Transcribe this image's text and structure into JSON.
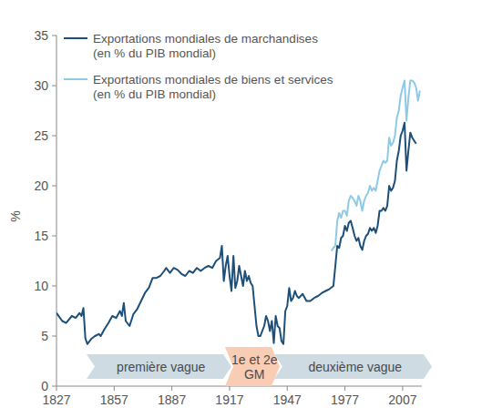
{
  "chart_data": {
    "type": "line",
    "y_label": "%",
    "xlim": [
      1827,
      2017
    ],
    "xticks": [
      1827,
      1857,
      1887,
      1917,
      1947,
      1977,
      2007
    ],
    "ylim": [
      0,
      35
    ],
    "yticks": [
      0,
      5,
      10,
      15,
      20,
      25,
      30,
      35
    ],
    "grid": false,
    "legend": "top-left",
    "annotations": [
      {
        "text": "première vague",
        "color": "#cfdbe3"
      },
      {
        "text": "1e et 2e GM",
        "color": "#f8cdb3"
      },
      {
        "text": "deuxième vague",
        "color": "#cfdbe3"
      }
    ],
    "series": [
      {
        "name": "Exportations mondiales de marchandises (en % du PIB mondial)",
        "color": "#1d4f78",
        "x": [
          1827,
          1830,
          1832,
          1835,
          1837,
          1839,
          1840,
          1841,
          1842,
          1843,
          1845,
          1847,
          1849,
          1850,
          1852,
          1854,
          1856,
          1858,
          1860,
          1861,
          1862,
          1863,
          1865,
          1867,
          1869,
          1871,
          1873,
          1875,
          1877,
          1879,
          1881,
          1883,
          1884,
          1886,
          1888,
          1890,
          1892,
          1894,
          1896,
          1898,
          1900,
          1902,
          1904,
          1906,
          1908,
          1910,
          1912,
          1913,
          1914,
          1915,
          1916,
          1917,
          1918,
          1919,
          1920,
          1921,
          1922,
          1923,
          1924,
          1925,
          1926,
          1927,
          1928,
          1929,
          1930,
          1931,
          1932,
          1933,
          1934,
          1935,
          1936,
          1937,
          1938,
          1939,
          1940,
          1941,
          1942,
          1943,
          1944,
          1945,
          1946,
          1947,
          1948,
          1949,
          1950,
          1951,
          1952,
          1953,
          1955,
          1957,
          1959,
          1961,
          1963,
          1965,
          1967,
          1969,
          1971,
          1972,
          1973,
          1974,
          1975,
          1976,
          1977,
          1978,
          1979,
          1980,
          1981,
          1982,
          1983,
          1984,
          1985,
          1986,
          1987,
          1988,
          1989,
          1990,
          1991,
          1992,
          1993,
          1994,
          1995,
          1996,
          1997,
          1998,
          1999,
          2000,
          2001,
          2002,
          2003,
          2004,
          2005,
          2006,
          2007,
          2008,
          2009,
          2010,
          2011,
          2012,
          2013,
          2014
        ],
        "values": [
          7.3,
          6.5,
          6.3,
          7.0,
          6.8,
          7.3,
          7.0,
          7.8,
          4.8,
          4.2,
          4.7,
          5.0,
          5.2,
          5.0,
          5.7,
          6.3,
          7.0,
          6.8,
          7.5,
          7.0,
          8.3,
          6.5,
          6.0,
          7.2,
          7.7,
          8.5,
          9.3,
          9.8,
          10.8,
          10.8,
          11.0,
          11.5,
          11.8,
          11.3,
          11.8,
          11.6,
          11.2,
          11.0,
          11.5,
          11.3,
          11.8,
          11.5,
          11.8,
          12.0,
          11.8,
          12.5,
          12.8,
          14.0,
          10.5,
          12.0,
          13.0,
          11.0,
          9.5,
          13.0,
          9.8,
          10.5,
          12.0,
          11.0,
          10.0,
          11.5,
          10.5,
          11.0,
          10.3,
          10.0,
          8.0,
          6.0,
          5.0,
          5.0,
          5.5,
          6.0,
          7.0,
          6.5,
          5.5,
          6.5,
          4.3,
          7.0,
          6.0,
          5.8,
          4.5,
          4.2,
          7.5,
          8.0,
          9.8,
          8.5,
          8.8,
          9.5,
          9.0,
          8.8,
          9.2,
          8.5,
          8.5,
          8.8,
          9.0,
          9.3,
          9.5,
          9.7,
          10.0,
          12.0,
          14.0,
          13.8,
          14.8,
          15.0,
          16.0,
          15.5,
          16.3,
          16.5,
          15.8,
          15.0,
          14.5,
          14.8,
          14.0,
          13.6,
          14.5,
          15.0,
          15.2,
          15.8,
          15.5,
          15.8,
          15.3,
          16.0,
          17.5,
          17.5,
          17.8,
          17.5,
          18.0,
          20.0,
          19.5,
          19.8,
          20.5,
          22.5,
          23.5,
          25.0,
          25.5,
          26.3,
          21.5,
          23.5,
          25.3,
          24.8,
          24.5,
          24.2
        ]
      },
      {
        "name": "Exportations mondiales de biens et services (en % du PIB mondial)",
        "color": "#8ecae6",
        "x": [
          1970,
          1971,
          1972,
          1973,
          1974,
          1975,
          1976,
          1977,
          1978,
          1979,
          1980,
          1981,
          1982,
          1983,
          1984,
          1985,
          1986,
          1987,
          1988,
          1989,
          1990,
          1991,
          1992,
          1993,
          1994,
          1995,
          1996,
          1997,
          1998,
          1999,
          2000,
          2001,
          2002,
          2003,
          2004,
          2005,
          2006,
          2007,
          2008,
          2009,
          2010,
          2011,
          2012,
          2013,
          2014,
          2015,
          2016
        ],
        "values": [
          13.5,
          13.8,
          14.0,
          16.5,
          17.3,
          16.8,
          17.5,
          17.5,
          17.0,
          18.5,
          19.0,
          18.8,
          18.5,
          18.0,
          19.0,
          18.5,
          17.5,
          18.5,
          19.0,
          19.3,
          20.0,
          19.5,
          19.8,
          19.5,
          20.5,
          21.5,
          22.0,
          22.5,
          22.3,
          22.5,
          24.8,
          24.0,
          24.3,
          25.0,
          26.8,
          27.5,
          29.0,
          29.8,
          30.5,
          26.5,
          28.8,
          30.5,
          30.5,
          30.3,
          29.8,
          28.5,
          29.5
        ]
      }
    ]
  }
}
